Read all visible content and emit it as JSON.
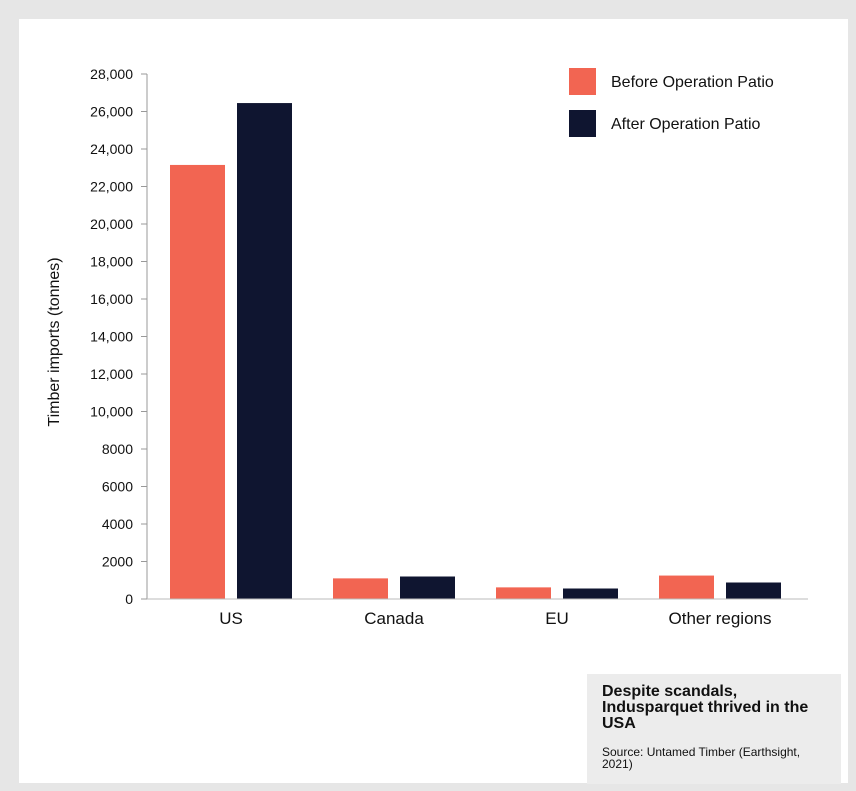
{
  "chart_data": {
    "type": "bar",
    "categories": [
      "US",
      "Canada",
      "EU",
      "Other regions"
    ],
    "series": [
      {
        "name": "Before Operation Patio",
        "color": "#f26552",
        "values": [
          23150,
          1100,
          620,
          1250
        ]
      },
      {
        "name": "After Operation Patio",
        "color": "#0f1530",
        "values": [
          26450,
          1200,
          560,
          880
        ]
      }
    ],
    "yticks": [
      "0",
      "2000",
      "4000",
      "6000",
      "8000",
      "10,000",
      "12,000",
      "14,000",
      "16,000",
      "18,000",
      "20,000",
      "22,000",
      "24,000",
      "26,000",
      "28,000"
    ],
    "ytick_values": [
      0,
      2000,
      4000,
      6000,
      8000,
      10000,
      12000,
      14000,
      16000,
      18000,
      20000,
      22000,
      24000,
      26000,
      28000
    ],
    "ylim": [
      0,
      28000
    ],
    "ylabel": "Timber imports (tonnes)",
    "xlabel": "",
    "grid": false,
    "legend": "top-right"
  },
  "note": {
    "title": "Despite scandals, Indusparquet thrived in the USA",
    "source": "Source: Untamed Timber (Earthsight, 2021)"
  }
}
